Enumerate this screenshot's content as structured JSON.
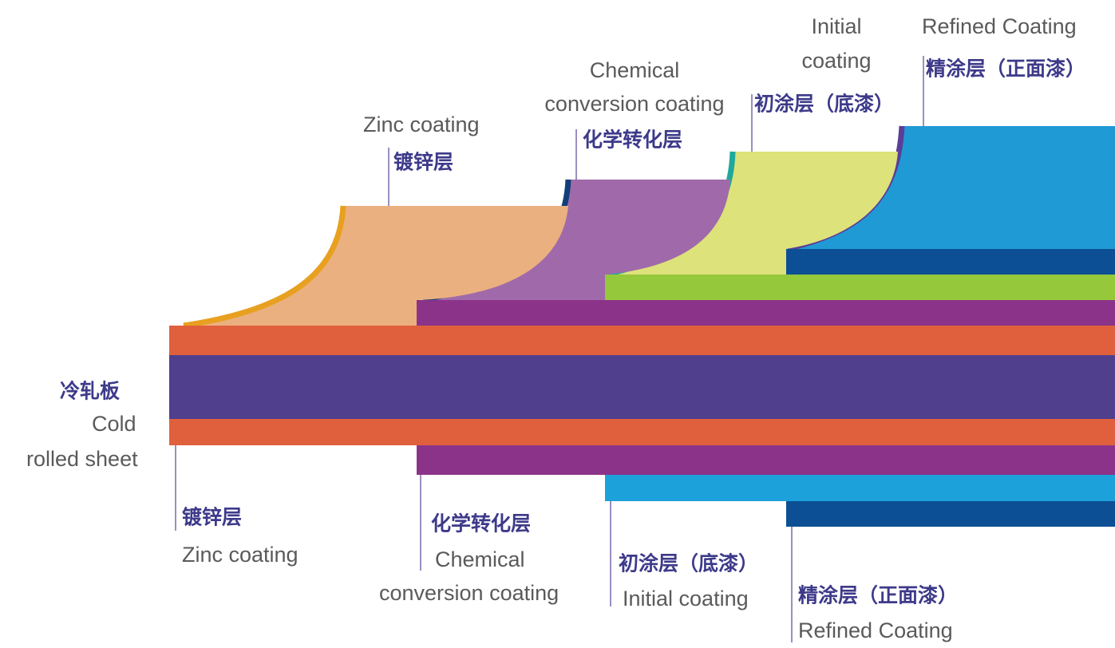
{
  "center_label": {
    "zh": "冷轧板",
    "en": [
      "Cold",
      "rolled sheet"
    ]
  },
  "top_labels": [
    {
      "en": [
        "Zinc coating"
      ],
      "zh": "镀锌层"
    },
    {
      "en": [
        "Chemical",
        "conversion coating"
      ],
      "zh": "化学转化层"
    },
    {
      "en": [
        "Initial",
        "coating"
      ],
      "zh": "初涂层（底漆）"
    },
    {
      "en": [
        "Refined Coating"
      ],
      "zh": "精涂层（正面漆）"
    }
  ],
  "bottom_labels": [
    {
      "zh": "镀锌层",
      "en": [
        "Zinc coating"
      ]
    },
    {
      "zh": "化学转化层",
      "en": [
        "Chemical",
        "conversion coating"
      ]
    },
    {
      "zh": "初涂层（底漆）",
      "en": [
        "Initial coating"
      ]
    },
    {
      "zh": "精涂层（正面漆）",
      "en": [
        "Refined Coating"
      ]
    }
  ]
}
